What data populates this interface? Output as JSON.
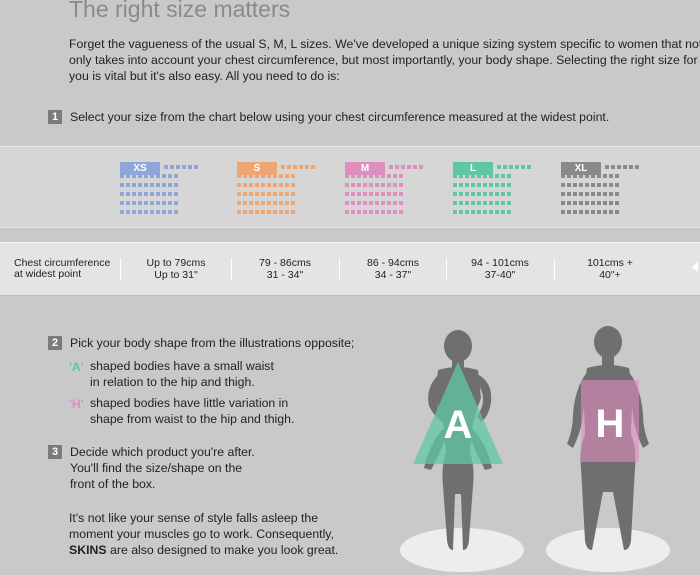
{
  "title": "The right size matters",
  "intro": "Forget the vagueness of the usual S, M, L sizes. We've developed a unique sizing system specific to women that not only takes into account your chest circumference, but most importantly, your body shape.  Selecting the right size for you is vital but it's also easy. All you need to do is:",
  "step1": {
    "num": "1",
    "text": "Select your size from the chart below using your chest circumference measured at the widest point."
  },
  "sizes": [
    {
      "label": "XS",
      "color": "#8fa6d9"
    },
    {
      "label": "S",
      "color": "#f0a673"
    },
    {
      "label": "M",
      "color": "#e08ec0"
    },
    {
      "label": "L",
      "color": "#5fc7a4"
    },
    {
      "label": "XL",
      "color": "#8a8a8a"
    }
  ],
  "row": {
    "label_line1": "Chest circumference",
    "label_line2": "at widest point",
    "cells": [
      {
        "l1": "Up to 79cms",
        "l2": "Up to 31\""
      },
      {
        "l1": "79 - 86cms",
        "l2": "31 - 34\""
      },
      {
        "l1": "86 - 94cms",
        "l2": "34 - 37\""
      },
      {
        "l1": "94 - 101cms",
        "l2": "37-40\""
      },
      {
        "l1": "101cms +",
        "l2": "40\"+"
      }
    ]
  },
  "step2": {
    "num": "2",
    "text": "Pick your body shape from the illustrations opposite;",
    "a_tag": "'A'",
    "a_line1": "shaped bodies have a small waist",
    "a_line2": "in relation to the hip and thigh.",
    "h_tag": "'H'",
    "h_line1": "shaped bodies have little variation in",
    "h_line2": "shape from waist to the hip and thigh."
  },
  "step3": {
    "num": "3",
    "line1": "Decide which product you're after.",
    "line2": "You'll find the size/shape on the",
    "line3": "front of the box."
  },
  "closing": {
    "line1": "It's not like your sense of style falls asleep the",
    "line2": "moment your muscles go to work. Consequently,",
    "brand": "SKINS",
    "line3_rest": " are also designed to make you look great."
  },
  "figures": {
    "a_letter": "A",
    "h_letter": "H",
    "a_color": "#5fc7a4",
    "h_color": "#e08ec0"
  }
}
